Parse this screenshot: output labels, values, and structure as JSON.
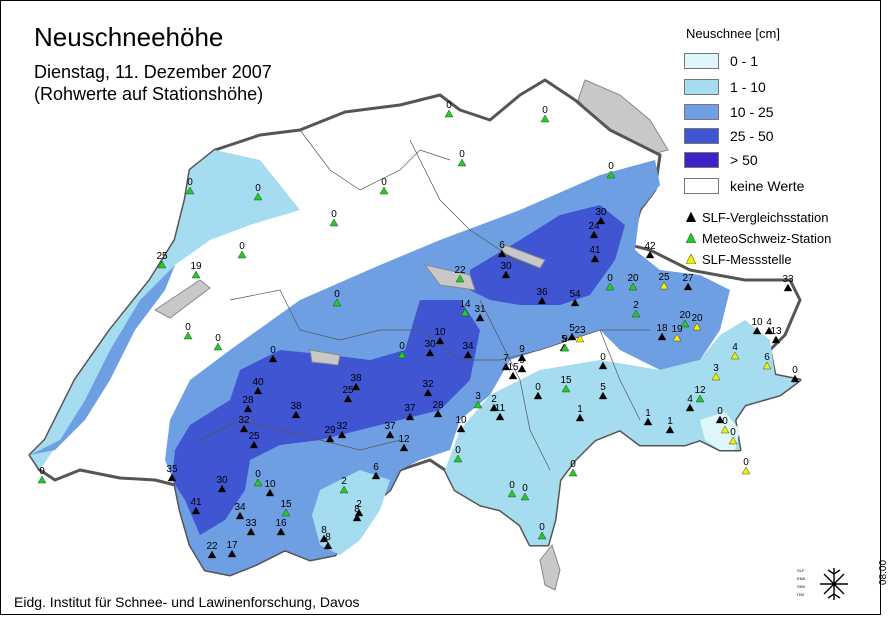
{
  "title": "Neuschneehöhe",
  "subtitle_line1": "Dienstag, 11. Dezember 2007",
  "subtitle_line2": "(Rohwerte auf Stationshöhe)",
  "legend": {
    "title": "Neuschnee [cm]",
    "classes": [
      {
        "label": "0 - 1",
        "color": "#dff6fb"
      },
      {
        "label": "1 - 10",
        "color": "#a6dcf0"
      },
      {
        "label": "10 - 25",
        "color": "#6e9fe3"
      },
      {
        "label": "25 - 50",
        "color": "#3f55d2"
      },
      {
        "label": "> 50",
        "color": "#3b23c4"
      },
      {
        "label": "keine Werte",
        "color": "#ffffff"
      }
    ],
    "station_types": [
      {
        "label": "SLF-Vergleichsstation",
        "color": "#000000"
      },
      {
        "label": "MeteoSchweiz-Station",
        "color": "#22cc22"
      },
      {
        "label": "SLF-Messstelle",
        "color": "#f0f000"
      }
    ]
  },
  "footer": "Eidg. Institut für Schnee- und Lawinenforschung, Davos",
  "timecode": "08:00",
  "logo_icon": "slf-snowflake-logo-icon",
  "station_values": [
    "0",
    "0",
    "0",
    "0",
    "0",
    "0",
    "0",
    "0",
    "0",
    "0",
    "0",
    "25",
    "19",
    "0",
    "0",
    "22",
    "6",
    "30",
    "36",
    "54",
    "30",
    "24",
    "41",
    "42",
    "20",
    "0",
    "25",
    "27",
    "33",
    "14",
    "31",
    "10",
    "30",
    "34",
    "40",
    "28",
    "38",
    "25",
    "38",
    "32",
    "25",
    "29",
    "32",
    "32",
    "37",
    "28",
    "37",
    "12",
    "10",
    "7",
    "15",
    "9",
    "5",
    "23",
    "5",
    "9",
    "2",
    "18",
    "19",
    "20",
    "20",
    "10",
    "4",
    "13",
    "4",
    "6",
    "3",
    "0",
    "12",
    "4",
    "1",
    "1",
    "0",
    "0",
    "0",
    "0",
    "0",
    "3",
    "2",
    "11",
    "0",
    "15",
    "1",
    "5",
    "35",
    "41",
    "30",
    "34",
    "33",
    "22",
    "17",
    "10",
    "15",
    "16",
    "0",
    "2",
    "8",
    "2",
    "8",
    "8",
    "6",
    "0",
    "0",
    "0",
    "0",
    "0",
    "0",
    "9",
    "0"
  ]
}
